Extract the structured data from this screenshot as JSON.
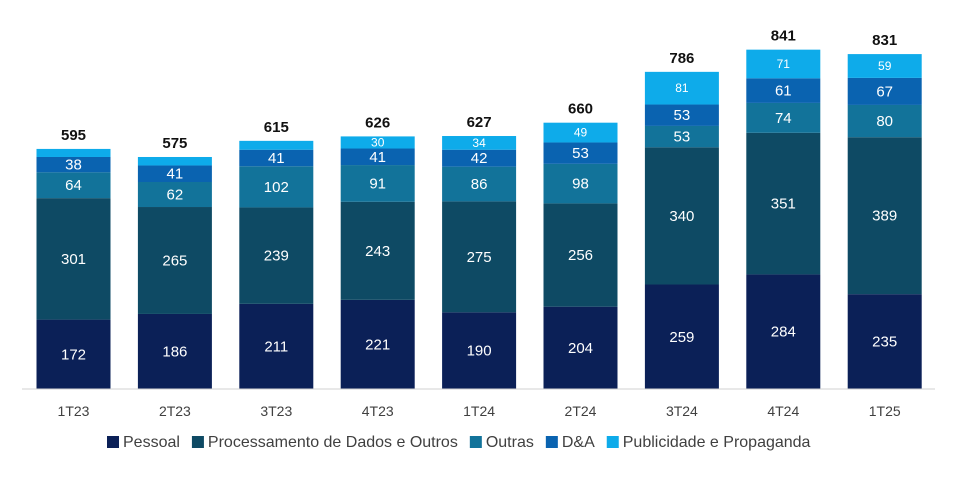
{
  "chart_data": {
    "type": "bar",
    "stacked": true,
    "categories": [
      "1T23",
      "2T23",
      "3T23",
      "4T23",
      "1T24",
      "2T24",
      "3T24",
      "4T24",
      "1T25"
    ],
    "series": [
      {
        "name": "Pessoal",
        "color": "#0b2057",
        "label_color": "#ffffff",
        "values": [
          172,
          186,
          211,
          221,
          190,
          204,
          259,
          284,
          235
        ]
      },
      {
        "name": "Processamento de Dados e Outros",
        "color": "#0e4a64",
        "label_color": "#ffffff",
        "values": [
          301,
          265,
          239,
          243,
          275,
          256,
          340,
          351,
          389
        ]
      },
      {
        "name": "Outras",
        "color": "#12739a",
        "label_color": "#ffffff",
        "values": [
          64,
          62,
          102,
          91,
          86,
          98,
          53,
          74,
          80
        ]
      },
      {
        "name": "D&A",
        "color": "#0a63b0",
        "label_color": "#ffffff",
        "values": [
          38,
          41,
          41,
          41,
          42,
          53,
          53,
          61,
          67
        ]
      },
      {
        "name": "Publicidade e Propaganda",
        "color": "#0eabea",
        "label_color": "#ffffff",
        "values": [
          20,
          21,
          22,
          30,
          34,
          49,
          81,
          71,
          59
        ],
        "value_labels": [
          "",
          "",
          "",
          "30",
          "34",
          "49",
          "81",
          "71",
          "59"
        ]
      }
    ],
    "totals": [
      595,
      575,
      615,
      626,
      627,
      660,
      786,
      841,
      831
    ],
    "ylim": [
      0,
      900
    ],
    "grid": false,
    "legend_position": "bottom"
  }
}
